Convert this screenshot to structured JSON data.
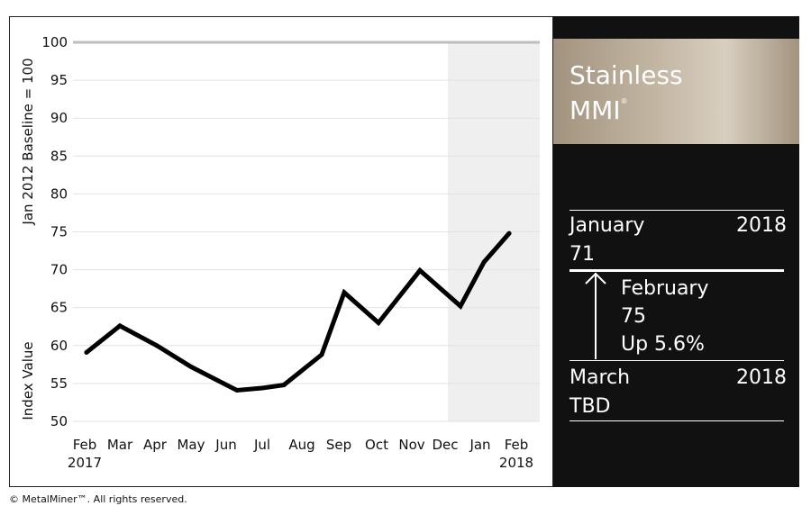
{
  "chart_data": {
    "type": "line",
    "ylabel_top": "Jan 2012 Baseline = 100",
    "ylabel_bottom": "Index Value",
    "ylim": [
      50,
      100
    ],
    "yticks": [
      100,
      95,
      90,
      85,
      80,
      75,
      70,
      65,
      60,
      55,
      50
    ],
    "x_ticks": [
      "Feb",
      "Mar",
      "Apr",
      "May",
      "Jun",
      "Jul",
      "Aug",
      "Sep",
      "Oct",
      "Nov",
      "Dec",
      "Jan",
      "Feb"
    ],
    "year_start_label": "2017",
    "year_end_label": "2018",
    "shaded_region": [
      "Dec",
      "Feb"
    ],
    "points": [
      {
        "x": "Feb 2017",
        "y": 59.1
      },
      {
        "x": "Mar 2017",
        "y": 62.6
      },
      {
        "x": "Apr 2017",
        "y": 60.0
      },
      {
        "x": "May 2017",
        "y": 57.2
      },
      {
        "x": "Jun 2017",
        "y": 54.1
      },
      {
        "x": "Jul 2017",
        "y": 54.4
      },
      {
        "x": "Aug 2017",
        "y": 54.8
      },
      {
        "x": "Aug-Sep 2017",
        "y": 58.8
      },
      {
        "x": "Sep 2017",
        "y": 67.0
      },
      {
        "x": "Oct 2017",
        "y": 63.0
      },
      {
        "x": "Nov 2017",
        "y": 69.9
      },
      {
        "x": "Dec 2017",
        "y": 65.2
      },
      {
        "x": "Jan 2018",
        "y": 71.0
      },
      {
        "x": "Feb 2018",
        "y": 74.8
      }
    ],
    "grid": true,
    "line_color": "#000000",
    "shade_color": "#efefef"
  },
  "panel": {
    "title_line1": "Stainless",
    "title_line2": "MMI",
    "title_mark": "®",
    "prev_month": "January",
    "prev_year": "2018",
    "prev_value": "71",
    "curr_month": "February",
    "curr_value": "75",
    "curr_change": "Up 5.6%",
    "next_month": "March",
    "next_year": "2018",
    "next_value": "TBD"
  },
  "footer": "© MetalMiner™. All rights reserved."
}
